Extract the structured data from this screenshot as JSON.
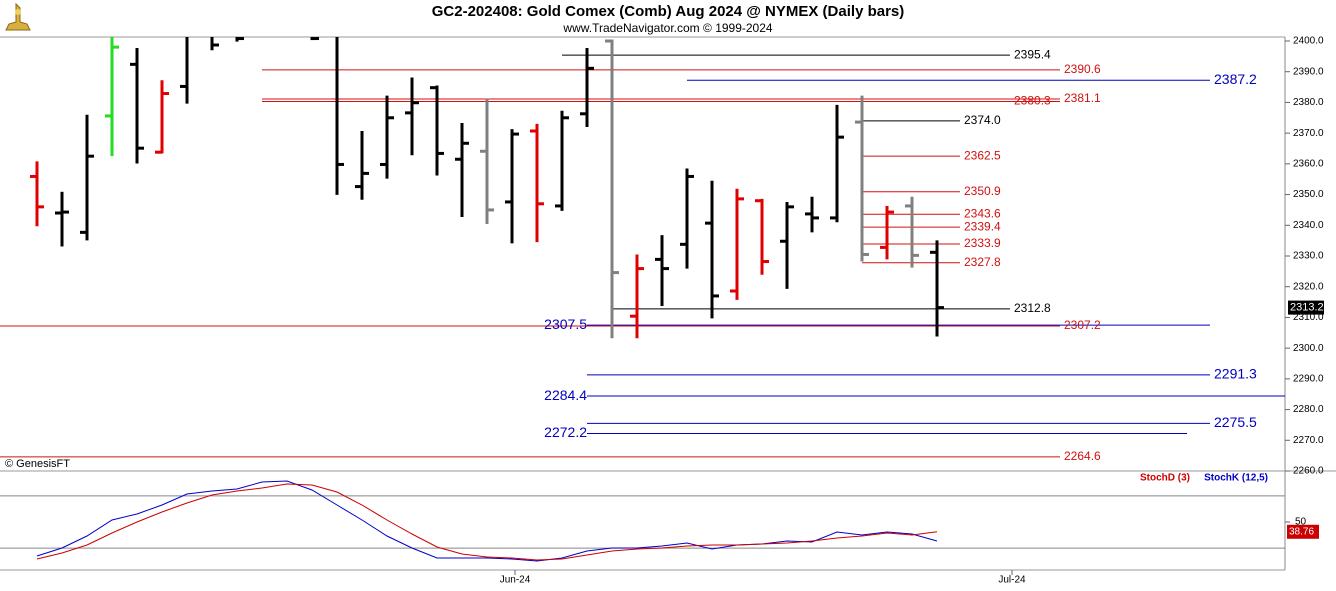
{
  "chart_data": [
    {
      "type": "ohlc",
      "title": "GC2-202408:  Gold Comex (Comb) Aug 2024 @ NYMEX  (Daily bars)",
      "subtitle": "www.TradeNavigator.com © 1999-2024",
      "note": "© GenesisFT",
      "x": [
        0,
        1,
        2,
        3,
        4,
        5,
        6,
        7,
        8,
        9,
        10,
        11,
        12,
        13,
        14,
        15,
        16,
        17,
        18,
        19,
        20,
        21,
        22,
        23,
        24,
        25,
        26,
        27,
        28,
        29,
        30,
        31,
        32,
        33,
        34,
        35,
        36
      ],
      "xlim": [
        -1.48,
        49.92
      ],
      "ylim": [
        2260,
        2401.3
      ],
      "yticks": [
        {
          "value": 2400,
          "label": "2400.0"
        },
        {
          "value": 2390,
          "label": "2390.0"
        },
        {
          "value": 2380,
          "label": "2380.0"
        },
        {
          "value": 2370,
          "label": "2370.0"
        },
        {
          "value": 2360,
          "label": "2360.0"
        },
        {
          "value": 2350,
          "label": "2350.0"
        },
        {
          "value": 2340,
          "label": "2340.0"
        },
        {
          "value": 2330,
          "label": "2330.0"
        },
        {
          "value": 2320,
          "label": "2320.0"
        },
        {
          "value": 2310,
          "label": "2310.0"
        },
        {
          "value": 2300,
          "label": "2300.0"
        },
        {
          "value": 2290,
          "label": "2290.0"
        },
        {
          "value": 2280,
          "label": "2280.0"
        },
        {
          "value": 2270,
          "label": "2270.0"
        },
        {
          "value": 2260,
          "label": "2260.0"
        }
      ],
      "open": [
        2355.9,
        2344,
        2337.7,
        2375.6,
        2392.4,
        2363.8,
        2385.2,
        2410,
        2410,
        null,
        null,
        2412,
        2402,
        2352.6,
        2359.8,
        2376.6,
        2384.8,
        2361.5,
        2364.1,
        2347.6,
        2370.7,
        2346.3,
        2376.3,
        2400,
        2310.4,
        2328.9,
        2333.8,
        2340.7,
        2318.6,
        2348,
        2334.8,
        2343.7,
        2342.4,
        2373.6,
        2332.8,
        2346.3,
        2331.2
      ],
      "high": [
        2360.8,
        2350.9,
        2376,
        2405,
        2397.7,
        2387.2,
        2410,
        2420,
        2418,
        null,
        null,
        2420,
        2404,
        2370.7,
        2382.2,
        2388.1,
        2385.5,
        2373.3,
        2381.2,
        2371.3,
        2373,
        2377.3,
        2397.7,
        2400.5,
        2330.5,
        2336.8,
        2358.5,
        2354.5,
        2351.9,
        2348.6,
        2347.6,
        2349.3,
        2379.2,
        2382.2,
        2346.3,
        2349.3,
        2335.1
      ],
      "low": [
        2339.7,
        2333.1,
        2335.1,
        2362.5,
        2360.1,
        2363.4,
        2379.6,
        2397,
        2399.8,
        null,
        null,
        2400.3,
        2349.9,
        2348.3,
        2355.2,
        2362.8,
        2356.2,
        2342.7,
        2340.4,
        2334.1,
        2334.5,
        2344.7,
        2372,
        2303.2,
        2303.2,
        2313.7,
        2325.9,
        2309.7,
        2315.7,
        2323.9,
        2319.3,
        2337.7,
        2341,
        2328.2,
        2328.9,
        2326.2,
        2303.8
      ],
      "close": [
        2346,
        2344.3,
        2362.5,
        2398,
        2365.1,
        2382.9,
        2403.6,
        2398.7,
        2400.8,
        null,
        null,
        2400.8,
        2359.8,
        2356.9,
        2375,
        2379.9,
        2363.4,
        2366.7,
        2345,
        2369.7,
        2347,
        2375,
        2391.1,
        2324.6,
        2325.9,
        2325.9,
        2355.9,
        2317,
        2348.6,
        2328.2,
        2346,
        2342.4,
        2368.7,
        2330.5,
        2344.3,
        2330.2,
        2313.2
      ],
      "colors": [
        "#e00000",
        "#000000",
        "#000000",
        "#22dd22",
        "#000000",
        "#e00000",
        "#000000",
        "#000000",
        "#000000",
        null,
        null,
        "#000000",
        "#000000",
        "#000000",
        "#000000",
        "#000000",
        "#000000",
        "#000000",
        "#808080",
        "#000000",
        "#e00000",
        "#000000",
        "#000000",
        "#808080",
        "#e00000",
        "#000000",
        "#000000",
        "#000000",
        "#e00000",
        "#e00000",
        "#000000",
        "#000000",
        "#000000",
        "#808080",
        "#e00000",
        "#808080",
        "#000000"
      ],
      "levels": [
        {
          "value": 2395.4,
          "color": "#000000"
        },
        {
          "value": 2390.6,
          "color": "#d01010"
        },
        {
          "value": 2387.2,
          "color": "#0000c0"
        },
        {
          "value": 2381.1,
          "color": "#d01010"
        },
        {
          "value": 2380.3,
          "color": "#d01010"
        },
        {
          "value": 2374,
          "label": "2374.0",
          "color": "#000000"
        },
        {
          "value": 2362.5,
          "color": "#d01010"
        },
        {
          "value": 2350.9,
          "color": "#d01010"
        },
        {
          "value": 2343.6,
          "color": "#d01010"
        },
        {
          "value": 2339.4,
          "color": "#d01010"
        },
        {
          "value": 2333.9,
          "color": "#d01010"
        },
        {
          "value": 2327.8,
          "color": "#d01010"
        },
        {
          "value": 2312.8,
          "color": "#000000"
        },
        {
          "value": 2307.5,
          "color": "#0000c0"
        },
        {
          "value": 2307.2,
          "color": "#d01010"
        },
        {
          "value": 2291.3,
          "color": "#0000c0"
        },
        {
          "value": 2284.4,
          "color": "#0000c0"
        },
        {
          "value": 2275.5,
          "color": "#0000c0"
        },
        {
          "value": 2272.2,
          "color": "#0000c0"
        },
        {
          "value": 2264.6,
          "color": "#d01010"
        }
      ]
    },
    {
      "type": "line",
      "x": [
        0,
        1,
        2,
        3,
        4,
        5,
        6,
        7,
        8,
        9,
        10,
        11,
        12,
        13,
        14,
        15,
        16,
        17,
        18,
        19,
        20,
        21,
        22,
        23,
        24,
        25,
        26,
        27,
        28,
        29,
        30,
        31,
        32,
        33,
        34,
        35,
        36
      ],
      "xlim": [
        -1.48,
        49.92
      ],
      "xticks": [
        {
          "value": 19.12,
          "label": "Jun-24"
        },
        {
          "value": 39,
          "label": "Jul-24"
        }
      ],
      "ylim": [
        -5.2,
        107.5
      ],
      "yticks": [
        50
      ],
      "levels": [
        20,
        80
      ],
      "series": [
        {
          "name": "StochK (12,5)",
          "color": "#0000cc",
          "values": [
            10.9,
            20.1,
            33.9,
            52.3,
            59.2,
            69.5,
            82.2,
            85.6,
            87.9,
            96,
            97.1,
            86.8,
            69.5,
            52.3,
            33.9,
            20.1,
            8.6,
            8.6,
            8.6,
            7.5,
            5.2,
            8.6,
            16.7,
            20.1,
            20.1,
            22.4,
            25.9,
            19,
            23.6,
            24.7,
            28.2,
            27,
            38.5,
            35.1,
            38.5,
            36.2,
            28.2
          ]
        },
        {
          "name": "StochD (3)",
          "color": "#cc0000",
          "values": [
            7.5,
            14.4,
            23.6,
            37.4,
            50,
            61.5,
            71.8,
            81,
            85.6,
            89.1,
            93.7,
            92.5,
            84.5,
            69.5,
            52.3,
            36.2,
            21.3,
            13.2,
            9.8,
            8.6,
            6.3,
            7.5,
            12.1,
            16.7,
            19,
            20.1,
            22.4,
            23.6,
            23.6,
            24.7,
            25.9,
            28.2,
            31.6,
            33.9,
            37.4,
            35.1,
            38.76
          ]
        }
      ]
    }
  ]
}
